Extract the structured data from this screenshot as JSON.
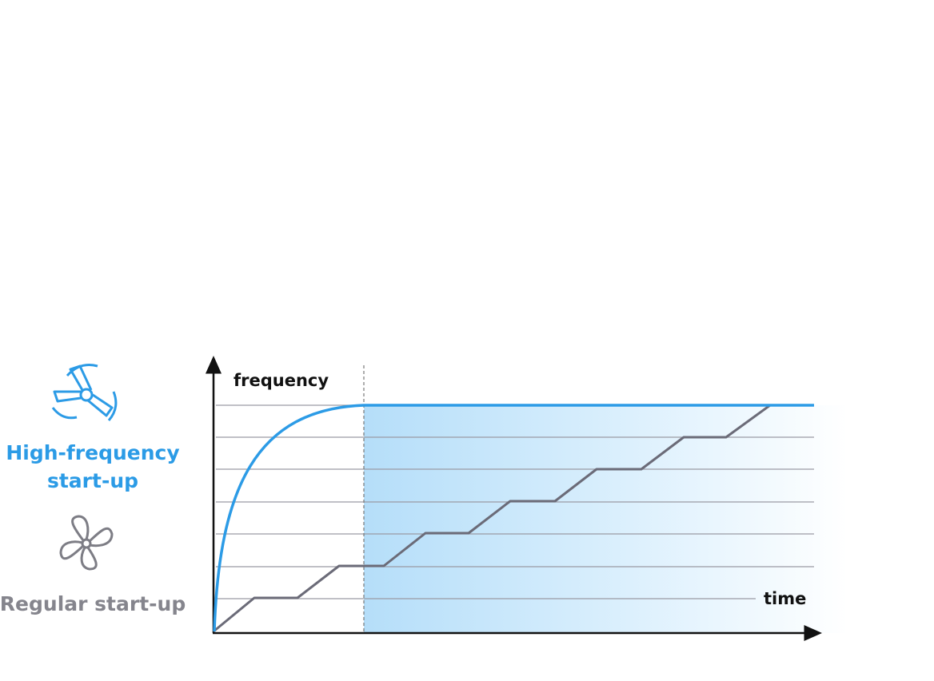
{
  "legend": {
    "high_frequency": {
      "label_lines": [
        "High-frequency",
        "start-up"
      ]
    },
    "regular": {
      "label": "Regular start-up"
    }
  },
  "axes": {
    "y_label": "frequency",
    "x_label": "time"
  }
}
